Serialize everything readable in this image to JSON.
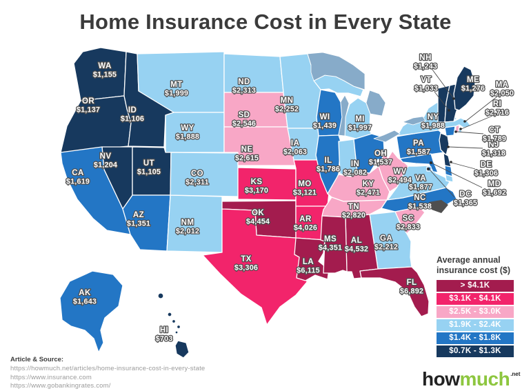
{
  "title": "Home Insurance Cost in Every State",
  "legend": {
    "title_line1": "Average annual",
    "title_line2": "insurance cost ($)"
  },
  "source": {
    "heading": "Article & Source:",
    "links": [
      "https://howmuch.net/articles/home-insurance-cost-in-every-state",
      "https://www.insurance.com",
      "https://www.gobankingrates.com/"
    ]
  },
  "logo": {
    "part1": "how",
    "part2": "much",
    "suffix": ".net"
  },
  "chart_data": {
    "type": "heatmap",
    "subtype": "us-state-choropleth",
    "title": "Home Insurance Cost in Every State",
    "value_label": "Average annual insurance cost ($)",
    "legend_position": "bottom-right",
    "buckets": [
      {
        "label": "> $4.1K",
        "color": "#a31c4e"
      },
      {
        "label": "$3.1K - $4.1K",
        "color": "#f2246b"
      },
      {
        "label": "$2.5K - $3.0K",
        "color": "#f8a7c6"
      },
      {
        "label": "$1.9K - $2.4K",
        "color": "#97d2f2"
      },
      {
        "label": "$1.4K - $1.8K",
        "color": "#2376c5"
      },
      {
        "label": "$0.7K - $1.3K",
        "color": "#17395e"
      }
    ],
    "states": [
      {
        "abbr": "WA",
        "value": "$1,155",
        "amount": 1155,
        "bucket": 5
      },
      {
        "abbr": "OR",
        "value": "$1,137",
        "amount": 1137,
        "bucket": 5
      },
      {
        "abbr": "ID",
        "value": "$1,106",
        "amount": 1106,
        "bucket": 5
      },
      {
        "abbr": "MT",
        "value": "$1,999",
        "amount": 1999,
        "bucket": 3
      },
      {
        "abbr": "WY",
        "value": "$1,888",
        "amount": 1888,
        "bucket": 3
      },
      {
        "abbr": "NV",
        "value": "$1,204",
        "amount": 1204,
        "bucket": 5
      },
      {
        "abbr": "UT",
        "value": "$1,105",
        "amount": 1105,
        "bucket": 5
      },
      {
        "abbr": "CA",
        "value": "$1,619",
        "amount": 1619,
        "bucket": 4
      },
      {
        "abbr": "AZ",
        "value": "$1,351",
        "amount": 1351,
        "bucket": 4
      },
      {
        "abbr": "NM",
        "value": "$2,012",
        "amount": 2012,
        "bucket": 3
      },
      {
        "abbr": "CO",
        "value": "$2,311",
        "amount": 2311,
        "bucket": 3
      },
      {
        "abbr": "ND",
        "value": "$2,313",
        "amount": 2313,
        "bucket": 3
      },
      {
        "abbr": "SD",
        "value": "$2,546",
        "amount": 2546,
        "bucket": 2
      },
      {
        "abbr": "NE",
        "value": "$2,615",
        "amount": 2615,
        "bucket": 2
      },
      {
        "abbr": "KS",
        "value": "$3,170",
        "amount": 3170,
        "bucket": 1
      },
      {
        "abbr": "OK",
        "value": "$4,454",
        "amount": 4454,
        "bucket": 0
      },
      {
        "abbr": "TX",
        "value": "$3,306",
        "amount": 3306,
        "bucket": 1
      },
      {
        "abbr": "MN",
        "value": "$2,252",
        "amount": 2252,
        "bucket": 3
      },
      {
        "abbr": "IA",
        "value": "$2,063",
        "amount": 2063,
        "bucket": 3
      },
      {
        "abbr": "MO",
        "value": "$3,121",
        "amount": 3121,
        "bucket": 1
      },
      {
        "abbr": "AR",
        "value": "$4,026",
        "amount": 4026,
        "bucket": 1
      },
      {
        "abbr": "LA",
        "value": "$6,115",
        "amount": 6115,
        "bucket": 0
      },
      {
        "abbr": "WI",
        "value": "$1,439",
        "amount": 1439,
        "bucket": 4
      },
      {
        "abbr": "MI",
        "value": "$1,997",
        "amount": 1997,
        "bucket": 3
      },
      {
        "abbr": "IL",
        "value": "$1,786",
        "amount": 1786,
        "bucket": 4
      },
      {
        "abbr": "IN",
        "value": "$2,082",
        "amount": 2082,
        "bucket": 3
      },
      {
        "abbr": "OH",
        "value": "$1,537",
        "amount": 1537,
        "bucket": 4
      },
      {
        "abbr": "KY",
        "value": "$2,471",
        "amount": 2471,
        "bucket": 2
      },
      {
        "abbr": "TN",
        "value": "$2,820",
        "amount": 2820,
        "bucket": 2
      },
      {
        "abbr": "WV",
        "value": "$2,494",
        "amount": 2494,
        "bucket": 2
      },
      {
        "abbr": "VA",
        "value": "$1,877",
        "amount": 1877,
        "bucket": 3
      },
      {
        "abbr": "NC",
        "value": "$1,538",
        "amount": 1538,
        "bucket": 4
      },
      {
        "abbr": "SC",
        "value": "$2,833",
        "amount": 2833,
        "bucket": 2
      },
      {
        "abbr": "GA",
        "value": "$2,212",
        "amount": 2212,
        "bucket": 3
      },
      {
        "abbr": "MS",
        "value": "$4,351",
        "amount": 4351,
        "bucket": 0
      },
      {
        "abbr": "AL",
        "value": "$4,532",
        "amount": 4532,
        "bucket": 0
      },
      {
        "abbr": "FL",
        "value": "$6,892",
        "amount": 6892,
        "bucket": 0
      },
      {
        "abbr": "PA",
        "value": "$1,587",
        "amount": 1587,
        "bucket": 4
      },
      {
        "abbr": "NY",
        "value": "$1,988",
        "amount": 1988,
        "bucket": 3
      },
      {
        "abbr": "NJ",
        "value": "$1,318",
        "amount": 1318,
        "bucket": 5
      },
      {
        "abbr": "DE",
        "value": "$1,306",
        "amount": 1306,
        "bucket": 5
      },
      {
        "abbr": "MD",
        "value": "$1,692",
        "amount": 1692,
        "bucket": 4
      },
      {
        "abbr": "DC",
        "value": "$1,365",
        "amount": 1365,
        "bucket": 4
      },
      {
        "abbr": "VT",
        "value": "$1,033",
        "amount": 1033,
        "bucket": 5
      },
      {
        "abbr": "NH",
        "value": "$1,243",
        "amount": 1243,
        "bucket": 5
      },
      {
        "abbr": "MA",
        "value": "$2,050",
        "amount": 2050,
        "bucket": 3
      },
      {
        "abbr": "RI",
        "value": "$2,716",
        "amount": 2716,
        "bucket": 2
      },
      {
        "abbr": "CT",
        "value": "$1,789",
        "amount": 1789,
        "bucket": 4
      },
      {
        "abbr": "ME",
        "value": "$1,276",
        "amount": 1276,
        "bucket": 5
      },
      {
        "abbr": "AK",
        "value": "$1,643",
        "amount": 1643,
        "bucket": 4
      },
      {
        "abbr": "HI",
        "value": "$703",
        "amount": 703,
        "bucket": 5
      }
    ]
  }
}
